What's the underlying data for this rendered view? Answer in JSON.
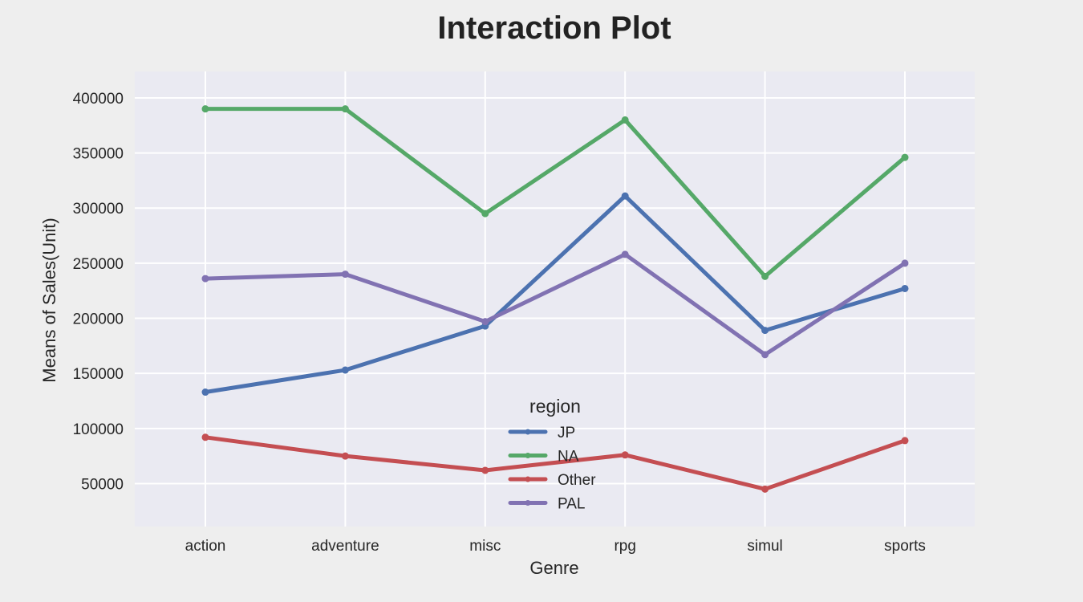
{
  "chart_data": {
    "type": "line",
    "title": "Interaction Plot",
    "xlabel": "Genre",
    "ylabel": "Means of Sales(Unit)",
    "categories": [
      "action",
      "adventure",
      "misc",
      "rpg",
      "simul",
      "sports"
    ],
    "ylim": [
      11000,
      424000
    ],
    "yticks": [
      50000,
      100000,
      150000,
      200000,
      250000,
      300000,
      350000,
      400000
    ],
    "grid": true,
    "legend": {
      "title": "region",
      "placement": "lower-center"
    },
    "series": [
      {
        "name": "JP",
        "color": "#4c72b0",
        "values": [
          133000,
          153000,
          193000,
          311000,
          189000,
          227000
        ]
      },
      {
        "name": "NA",
        "color": "#55a868",
        "values": [
          390000,
          390000,
          295000,
          380000,
          238000,
          346000
        ]
      },
      {
        "name": "Other",
        "color": "#c44e52",
        "values": [
          92000,
          75000,
          62000,
          76000,
          45000,
          89000
        ]
      },
      {
        "name": "PAL",
        "color": "#8172b2",
        "values": [
          236000,
          240000,
          197000,
          258000,
          167000,
          250000
        ]
      }
    ]
  }
}
